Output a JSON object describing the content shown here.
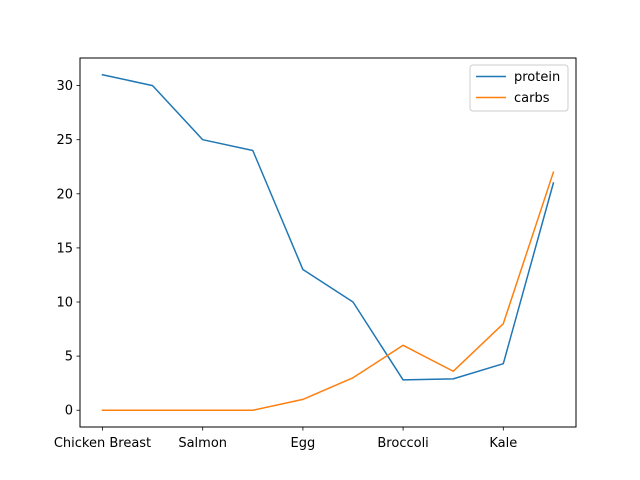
{
  "chart_data": {
    "type": "line",
    "x": [
      "Chicken Breast",
      "",
      "Salmon",
      "",
      "Egg",
      "",
      "Broccoli",
      "",
      "Kale",
      ""
    ],
    "xtick_labels": [
      "Chicken Breast",
      "Salmon",
      "Egg",
      "Broccoli",
      "Kale"
    ],
    "series": [
      {
        "name": "protein",
        "color": "#1f77b4",
        "values": [
          31,
          30,
          25,
          24,
          13,
          10,
          2.8,
          2.9,
          4.3,
          21
        ]
      },
      {
        "name": "carbs",
        "color": "#ff7f0e",
        "values": [
          0,
          0,
          0,
          0,
          1,
          3,
          6,
          3.6,
          8,
          22
        ]
      }
    ],
    "ylim": [
      -1.55,
      32.55
    ],
    "yticks": [
      0,
      5,
      10,
      15,
      20,
      25,
      30
    ],
    "title": "",
    "xlabel": "",
    "ylabel": "",
    "grid": false,
    "legend_position": "top-right"
  }
}
